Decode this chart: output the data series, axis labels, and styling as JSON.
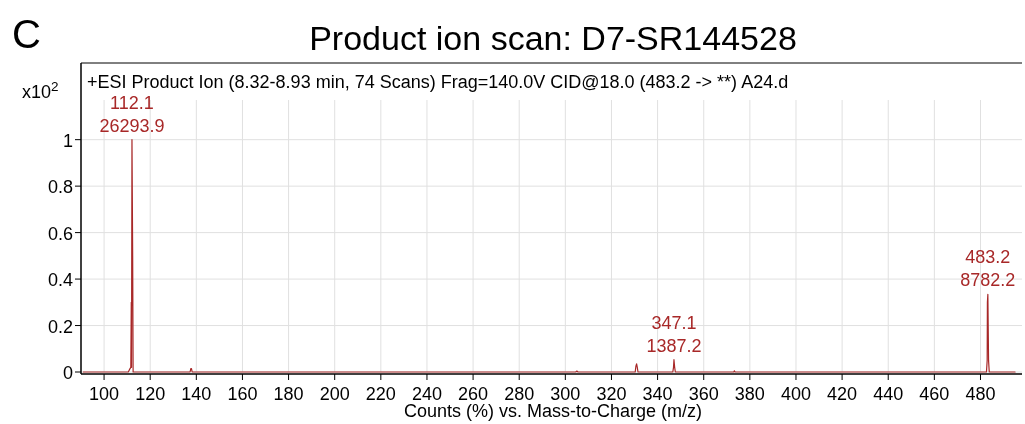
{
  "chart_data": {
    "type": "line",
    "title": "Product ion scan: D7-SR144528",
    "subtitle": "+ESI Product Ion (8.32-8.93 min, 74 Scans) Frag=140.0V CID@18.0 (483.2 -> **) A24.d",
    "xlabel": "Counts (%) vs. Mass-to-Charge (m/z)",
    "ylabel": "x10$^{2}$",
    "annotations": [
      "C",
      {
        "text": "112.1\n26293.9",
        "x": 112.1,
        "y": 1.0
      },
      {
        "text": "347.1\n1387.2",
        "x": 347.1,
        "y": 0.053
      },
      {
        "text": "483.2\n8782.2",
        "x": 483.2,
        "y": 0.334
      }
    ],
    "series": [
      {
        "color": "#a82828",
        "x": [
          91,
          110.5,
          111.0,
          111.6,
          111.8,
          111.9,
          112.0,
          112.1,
          112.4,
          112.6,
          137.3,
          137.6,
          137.9,
          138.2,
          304.5,
          305,
          305.5,
          330.3,
          330.6,
          330.9,
          331.2,
          331.5,
          346.6,
          346.9,
          347.1,
          347.4,
          347.7,
          373,
          373.3,
          373.6,
          482.6,
          482.9,
          483.0,
          483.2,
          483.5,
          483.8,
          495
        ],
        "values": [
          0,
          0,
          0.01,
          0.02,
          0.3,
          0.02,
          0.5,
          1.0,
          0.5,
          0,
          0,
          0.015,
          0.015,
          0,
          0,
          0.004,
          0,
          0,
          0.025,
          0.035,
          0.02,
          0,
          0,
          0.02,
          0.053,
          0.02,
          0,
          0,
          0.005,
          0,
          0,
          0.05,
          0.3,
          0.334,
          0.05,
          0,
          0
        ]
      }
    ],
    "xlim": [
      90,
      498
    ],
    "ylim": [
      0,
      1.33
    ],
    "xticks": [
      100,
      120,
      140,
      160,
      180,
      200,
      220,
      240,
      260,
      280,
      300,
      320,
      340,
      360,
      380,
      400,
      420,
      440,
      460,
      480
    ],
    "yticks": [
      0,
      0.2,
      0.4,
      0.6,
      0.8,
      1
    ],
    "grid": true,
    "marker": "none",
    "line_style": "solid"
  }
}
